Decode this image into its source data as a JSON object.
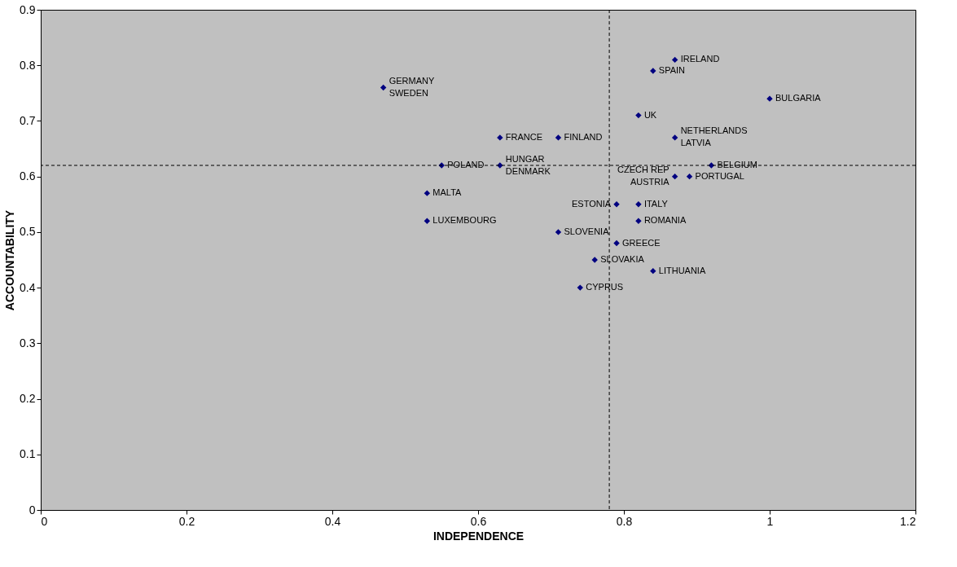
{
  "chart_data": {
    "type": "scatter",
    "xlabel": "INDEPENDENCE",
    "ylabel": "ACCOUNTABILITY",
    "x": [
      0.47,
      0.84,
      0.87,
      1.0,
      0.82,
      0.63,
      0.71,
      0.87,
      0.55,
      0.63,
      0.92,
      0.87,
      0.89,
      0.53,
      0.79,
      0.82,
      0.53,
      0.82,
      0.71,
      0.79,
      0.76,
      0.84,
      0.74
    ],
    "series": [
      {
        "color": "#000080",
        "values": [
          0.76,
          0.79,
          0.81,
          0.74,
          0.71,
          0.67,
          0.67,
          0.67,
          0.62,
          0.62,
          0.62,
          0.6,
          0.6,
          0.57,
          0.55,
          0.55,
          0.52,
          0.52,
          0.5,
          0.48,
          0.45,
          0.43,
          0.4
        ]
      }
    ],
    "marker": "diamond",
    "xlim": [
      0,
      1.2
    ],
    "xticks": [
      0,
      0.2,
      0.4,
      0.6,
      0.8,
      1,
      1.2
    ],
    "ylim": [
      0,
      0.9
    ],
    "yticks": [
      0,
      0.1,
      0.2,
      0.3,
      0.4,
      0.5,
      0.6,
      0.7,
      0.8,
      0.9
    ],
    "grid": false,
    "ref_lines": [
      {
        "axis": "x",
        "value": 0.78,
        "line_style": "dashed",
        "color": "#000000"
      },
      {
        "axis": "y",
        "value": 0.62,
        "line_style": "dashed",
        "color": "#000000"
      }
    ],
    "annotations": [
      {
        "text": "GERMANY",
        "x": 0.47,
        "y": 0.76
      },
      {
        "text": "SWEDEN",
        "x": 0.47,
        "y": 0.76
      },
      {
        "text": "IRELAND",
        "x": 0.87,
        "y": 0.81
      },
      {
        "text": "SPAIN",
        "x": 0.84,
        "y": 0.79
      },
      {
        "text": "BULGARIA",
        "x": 1.0,
        "y": 0.74
      },
      {
        "text": "FRANCE",
        "x": 0.63,
        "y": 0.67
      },
      {
        "text": "UK",
        "x": 0.82,
        "y": 0.71
      },
      {
        "text": "FINLAND",
        "x": 0.71,
        "y": 0.67
      },
      {
        "text": "NETHERLANDS",
        "x": 0.87,
        "y": 0.67
      },
      {
        "text": "LATVIA",
        "x": 0.87,
        "y": 0.67
      },
      {
        "text": "POLAND",
        "x": 0.55,
        "y": 0.62
      },
      {
        "text": "HUNGAR",
        "x": 0.63,
        "y": 0.62
      },
      {
        "text": "CZECH REP",
        "x": 0.87,
        "y": 0.6
      },
      {
        "text": "BELGIUM",
        "x": 0.92,
        "y": 0.62
      },
      {
        "text": "DENMARK",
        "x": 0.63,
        "y": 0.62
      },
      {
        "text": "AUSTRIA",
        "x": 0.87,
        "y": 0.6
      },
      {
        "text": "PORTUGAL",
        "x": 0.89,
        "y": 0.6
      },
      {
        "text": "MALTA",
        "x": 0.53,
        "y": 0.57
      },
      {
        "text": "ESTONIA",
        "x": 0.79,
        "y": 0.55
      },
      {
        "text": "ITALY",
        "x": 0.82,
        "y": 0.55
      },
      {
        "text": "ROMANIA",
        "x": 0.82,
        "y": 0.52
      },
      {
        "text": "LUXEMBOURG",
        "x": 0.53,
        "y": 0.52
      },
      {
        "text": "SLOVENIA",
        "x": 0.71,
        "y": 0.5
      },
      {
        "text": "GREECE",
        "x": 0.79,
        "y": 0.48
      },
      {
        "text": "SLOVAKIA",
        "x": 0.76,
        "y": 0.45
      },
      {
        "text": "LITHUANIA",
        "x": 0.84,
        "y": 0.43
      },
      {
        "text": "CYPRUS",
        "x": 0.74,
        "y": 0.4
      }
    ]
  }
}
